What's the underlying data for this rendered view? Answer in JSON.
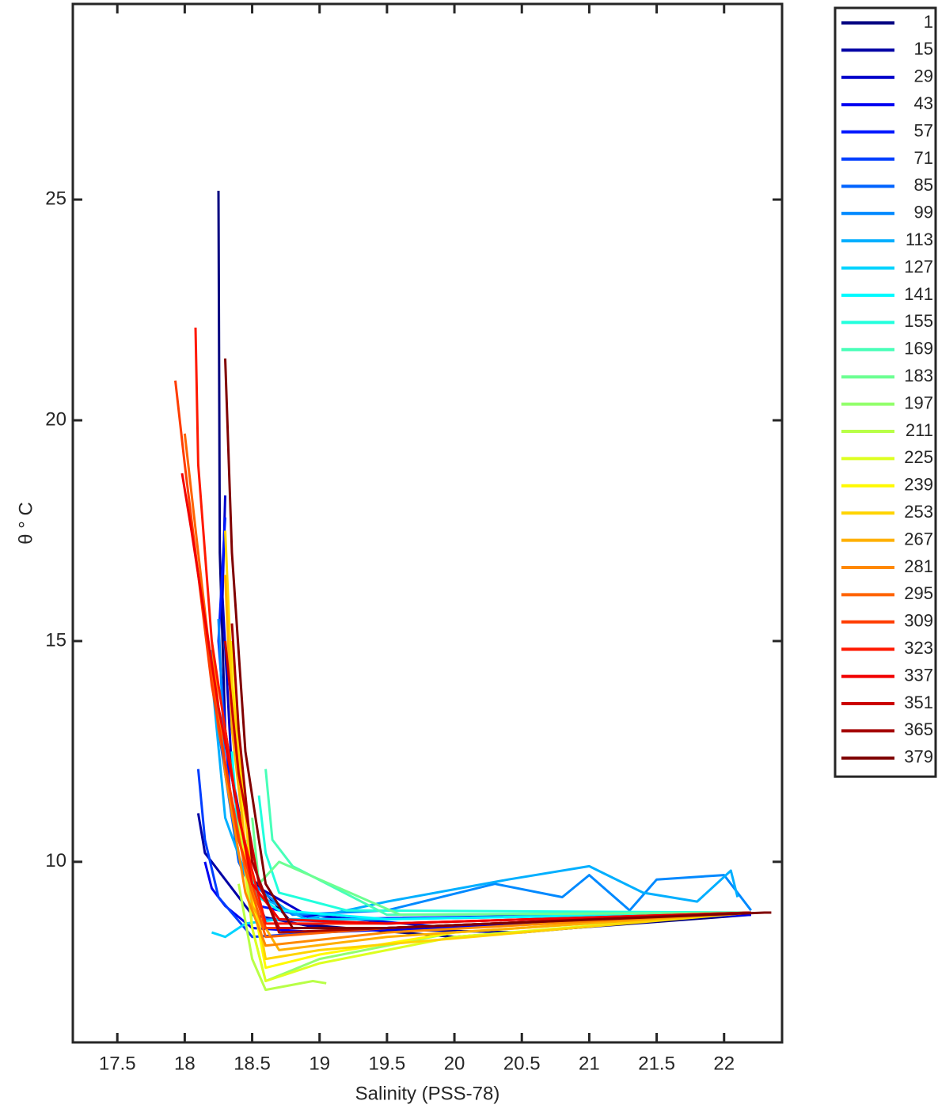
{
  "chart_data": {
    "type": "line",
    "xlabel": "Salinity (PSS-78)",
    "ylabel": "θ ° C",
    "xlim": [
      17.17,
      22.43
    ],
    "ylim": [
      5.91,
      29.43
    ],
    "xticks": [
      17.5,
      18,
      18.5,
      19,
      19.5,
      20,
      20.5,
      21,
      21.5,
      22
    ],
    "yticks": [
      10,
      15,
      20,
      25
    ],
    "legend": "outside-right",
    "line_width": 3,
    "series": [
      {
        "name": "1",
        "color": "#000080",
        "x": [
          18.25,
          18.26,
          18.3,
          18.45,
          18.8,
          20,
          22.2
        ],
        "values": [
          25.2,
          17,
          13,
          9.8,
          8.6,
          8.3,
          8.8
        ]
      },
      {
        "name": "15",
        "color": "#0000a5",
        "x": [
          18.1,
          18.15,
          18.3,
          18.5,
          19,
          20.5,
          22.2
        ],
        "values": [
          11.1,
          10.2,
          9.6,
          8.8,
          8.5,
          8.4,
          8.85
        ]
      },
      {
        "name": "29",
        "color": "#0000cb",
        "x": [
          18.3,
          18.28,
          18.35,
          18.5,
          18.9,
          20,
          22.2
        ],
        "values": [
          18.3,
          16,
          12,
          9.5,
          8.8,
          8.5,
          8.85
        ]
      },
      {
        "name": "43",
        "color": "#0000f1",
        "x": [
          18.15,
          18.2,
          18.3,
          18.5,
          19,
          22.2
        ],
        "values": [
          10,
          9.4,
          9,
          8.5,
          8.4,
          8.8
        ]
      },
      {
        "name": "57",
        "color": "#0018ff",
        "x": [
          18.3,
          18.25,
          18.35,
          18.55,
          19,
          22.2
        ],
        "values": [
          17.8,
          15,
          11,
          9,
          8.7,
          8.85
        ]
      },
      {
        "name": "71",
        "color": "#003dff",
        "x": [
          18.1,
          18.15,
          18.25,
          18.5,
          19.5,
          22.2
        ],
        "values": [
          12.1,
          10.5,
          9.2,
          8.3,
          8.5,
          8.85
        ]
      },
      {
        "name": "85",
        "color": "#0063ff",
        "x": [
          18.2,
          18.25,
          18.4,
          18.6,
          19.5,
          22.2
        ],
        "values": [
          14.8,
          13,
          10,
          8.7,
          8.6,
          8.85
        ]
      },
      {
        "name": "99",
        "color": "#0089ff",
        "x": [
          18.25,
          18.3,
          18.5,
          18.8,
          19.5,
          20.3,
          20.8,
          21,
          21.3,
          21.5,
          22,
          22.2
        ],
        "values": [
          15.5,
          12,
          9.5,
          8.8,
          8.9,
          9.5,
          9.2,
          9.7,
          8.9,
          9.6,
          9.7,
          8.9
        ]
      },
      {
        "name": "113",
        "color": "#00afff",
        "x": [
          18.2,
          18.3,
          18.5,
          18.9,
          19.5,
          20.4,
          21,
          21.4,
          21.8,
          22.05,
          22.1
        ],
        "values": [
          14.2,
          11,
          9.3,
          8.7,
          9.1,
          9.6,
          9.9,
          9.3,
          9.1,
          9.8,
          9.2
        ]
      },
      {
        "name": "127",
        "color": "#00d4ff",
        "x": [
          18.2,
          18.3,
          18.45,
          18.7,
          19.5,
          22.2
        ],
        "values": [
          8.4,
          8.3,
          8.6,
          8.7,
          8.7,
          8.85
        ]
      },
      {
        "name": "141",
        "color": "#00faff",
        "x": [
          18.35,
          18.4,
          18.55,
          18.7,
          19.5,
          22.2
        ],
        "values": [
          12.5,
          10.5,
          9.2,
          8.9,
          8.7,
          8.85
        ]
      },
      {
        "name": "155",
        "color": "#21ffdd",
        "x": [
          18.55,
          18.6,
          18.7,
          19.2,
          22.2
        ],
        "values": [
          11.5,
          10.2,
          9.3,
          8.9,
          8.85
        ]
      },
      {
        "name": "169",
        "color": "#47ffb8",
        "x": [
          18.6,
          18.65,
          18.8,
          19.5,
          22.2
        ],
        "values": [
          12.1,
          10.5,
          9.9,
          8.8,
          8.85
        ]
      },
      {
        "name": "183",
        "color": "#6cff92",
        "x": [
          18.5,
          18.55,
          18.7,
          19.6,
          22.2
        ],
        "values": [
          11,
          9.5,
          10,
          8.8,
          8.85
        ]
      },
      {
        "name": "197",
        "color": "#92ff6c",
        "x": [
          18.45,
          18.5,
          18.6,
          19,
          20,
          22.2
        ],
        "values": [
          10.5,
          8.5,
          7.3,
          7.8,
          8.4,
          8.85
        ]
      },
      {
        "name": "211",
        "color": "#b8ff47",
        "x": [
          18.4,
          18.5,
          18.6,
          18.95,
          19.05
        ],
        "values": [
          9.5,
          7.8,
          7.1,
          7.3,
          7.25
        ]
      },
      {
        "name": "225",
        "color": "#ddff21",
        "x": [
          18.4,
          18.5,
          18.6,
          19,
          20,
          22.2
        ],
        "values": [
          11,
          8.5,
          7.3,
          7.7,
          8.3,
          8.85
        ]
      },
      {
        "name": "239",
        "color": "#fffa00",
        "x": [
          18.35,
          18.45,
          18.6,
          19,
          20,
          22.2
        ],
        "values": [
          15,
          10,
          7.6,
          7.9,
          8.4,
          8.85
        ]
      },
      {
        "name": "253",
        "color": "#ffd400",
        "x": [
          18.3,
          18.35,
          18.5,
          18.6,
          19,
          22.2
        ],
        "values": [
          17.5,
          14,
          9.5,
          7.8,
          8,
          8.85
        ]
      },
      {
        "name": "267",
        "color": "#ffaf00",
        "x": [
          18.3,
          18.35,
          18.5,
          18.7,
          19.5,
          22.2
        ],
        "values": [
          16.5,
          13,
          9,
          8,
          8.3,
          8.85
        ]
      },
      {
        "name": "281",
        "color": "#ff8900",
        "x": [
          18.2,
          18.3,
          18.45,
          18.6,
          19.5,
          22.2
        ],
        "values": [
          15,
          12,
          9.3,
          8.1,
          8.4,
          8.85
        ]
      },
      {
        "name": "295",
        "color": "#ff6300",
        "x": [
          18.0,
          18.1,
          18.25,
          18.45,
          18.6,
          19.5,
          22.2
        ],
        "values": [
          19.7,
          17,
          13,
          9.8,
          8.3,
          8.5,
          8.85
        ]
      },
      {
        "name": "309",
        "color": "#ff3d00",
        "x": [
          17.93,
          18.0,
          18.2,
          18.4,
          18.6,
          19.5,
          22.2
        ],
        "values": [
          20.9,
          19,
          14,
          10.5,
          8.5,
          8.5,
          8.85
        ]
      },
      {
        "name": "323",
        "color": "#ff1800",
        "x": [
          18.08,
          18.1,
          18.2,
          18.4,
          18.6,
          19.5,
          22.2
        ],
        "values": [
          22.1,
          19,
          15,
          11,
          8.6,
          8.6,
          8.85
        ]
      },
      {
        "name": "337",
        "color": "#f10000",
        "x": [
          17.98,
          18.05,
          18.25,
          18.5,
          18.7,
          19.5,
          22.2
        ],
        "values": [
          18.8,
          17.5,
          13.5,
          9.5,
          8.7,
          8.6,
          8.85
        ]
      },
      {
        "name": "351",
        "color": "#cb0000",
        "x": [
          18.3,
          18.4,
          18.55,
          18.7,
          19.5,
          22.2
        ],
        "values": [
          15,
          12,
          9.5,
          8.5,
          8.5,
          8.85
        ]
      },
      {
        "name": "365",
        "color": "#a50000",
        "x": [
          18.35,
          18.4,
          18.5,
          18.7,
          19.5,
          22.2
        ],
        "values": [
          15.4,
          13,
          10,
          8.4,
          8.5,
          8.85
        ]
      },
      {
        "name": "379",
        "color": "#800000",
        "x": [
          18.3,
          18.35,
          18.45,
          18.6,
          18.8,
          19.5,
          22.3,
          22.35
        ],
        "values": [
          21.4,
          17,
          12.5,
          9.5,
          8.5,
          8.5,
          8.85,
          8.85
        ]
      }
    ]
  }
}
